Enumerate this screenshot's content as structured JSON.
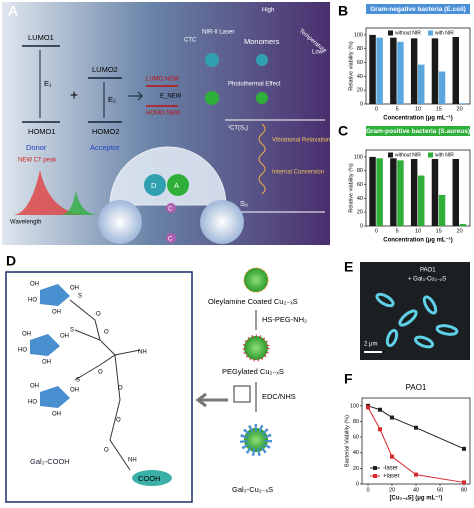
{
  "panel_labels": [
    "A",
    "B",
    "C",
    "D",
    "E",
    "F"
  ],
  "panel_a": {
    "lumo1": "LUMO1",
    "homo1": "HOMO1",
    "e1": "E₁",
    "donor": "Donor",
    "lumo2": "LUMO2",
    "homo2": "HOMO2",
    "e2": "E₂",
    "acceptor": "Acceptor",
    "lumo_new": "LUMO NEW",
    "homo_new": "HOMO NEW",
    "e_new": "E_NEW",
    "ctc": "CTC",
    "laser": "NIR-II Laser",
    "monomers": "Monomers",
    "photothermal": "Photothermal Effect",
    "high": "High",
    "temperature": "Temperature",
    "low": "Low",
    "ct_s1": "¹CT(S₁)",
    "vibrational": "Vibrational Relaxation",
    "internal": "Internal Conversion",
    "s0": "S₀",
    "new_ct_peak": "NEW CT peak",
    "wavelength": "Wavelength",
    "d": "D",
    "a": "A",
    "c1": "C",
    "c2": "C"
  },
  "panel_d": {
    "oleylamine": "Oleylamine Coated Cu₂₋ₓS",
    "hs_peg": "HS-PEG-NH₂",
    "pegylated": "PEGylated Cu₂₋ₓS",
    "edc": "EDC/NHS",
    "gal_cu": "Gal₃-Cu₂₋ₓS",
    "gal_cooh": "Gal₃-COOH",
    "cooh": "COOH",
    "molecule_labels": [
      "OH",
      "OH",
      "HO",
      "OH",
      "S",
      "OH",
      "OH",
      "HO",
      "OH",
      "S",
      "OH",
      "OH",
      "HO",
      "OH",
      "S",
      "O",
      "O",
      "O",
      "NH",
      "O",
      "O",
      "NH",
      "O"
    ]
  },
  "panel_e": {
    "strain": "PAO1",
    "treatment": "+ Gal₃-Cu₂₋ₓS",
    "scale": "2 μm"
  },
  "chart_data": [
    {
      "type": "bar",
      "title": "Gram-negative bacteria (E.coli)",
      "x_label": "Concentration (μg mL⁻¹)",
      "y_label": "Relative viability (%)",
      "categories": [
        "0",
        "5",
        "10",
        "15",
        "20"
      ],
      "series": [
        {
          "name": "without NIR",
          "color": "#1a1a1a",
          "values": [
            100,
            96,
            95,
            95,
            97
          ]
        },
        {
          "name": "with NIR",
          "color": "#5aa7e0",
          "values": [
            96,
            90,
            57,
            47,
            1
          ]
        }
      ],
      "ylim": [
        0,
        110
      ],
      "yticks": [
        0,
        20,
        40,
        60,
        80,
        100
      ]
    },
    {
      "type": "bar",
      "title": "Gram-positive bacteria (S.aureus)",
      "x_label": "Concentration (μg mL⁻¹)",
      "y_label": "Relative viability (%)",
      "categories": [
        "0",
        "5",
        "10",
        "15",
        "20"
      ],
      "series": [
        {
          "name": "without NIR",
          "color": "#1a1a1a",
          "values": [
            100,
            98,
            97,
            97,
            97
          ]
        },
        {
          "name": "with NIR",
          "color": "#2fae3a",
          "values": [
            98,
            95,
            73,
            45,
            3
          ]
        }
      ],
      "ylim": [
        0,
        110
      ],
      "yticks": [
        0,
        20,
        40,
        60,
        80,
        100
      ]
    },
    {
      "type": "line",
      "title": "PAO1",
      "x_label": "[Cu₂₋ₓS] (μg mL⁻¹)",
      "y_label": "Bacterial Viability (%)",
      "x": [
        0,
        10,
        20,
        40,
        80
      ],
      "series": [
        {
          "name": "-laser",
          "color": "#222222",
          "values": [
            100,
            95,
            85,
            72,
            45
          ]
        },
        {
          "name": "+laser",
          "color": "#d8282b",
          "values": [
            98,
            70,
            35,
            12,
            2
          ]
        }
      ],
      "xlim": [
        -5,
        85
      ],
      "xticks": [
        0,
        20,
        40,
        60,
        80
      ],
      "ylim": [
        0,
        110
      ],
      "yticks": [
        0,
        20,
        40,
        60,
        80,
        100
      ]
    }
  ]
}
